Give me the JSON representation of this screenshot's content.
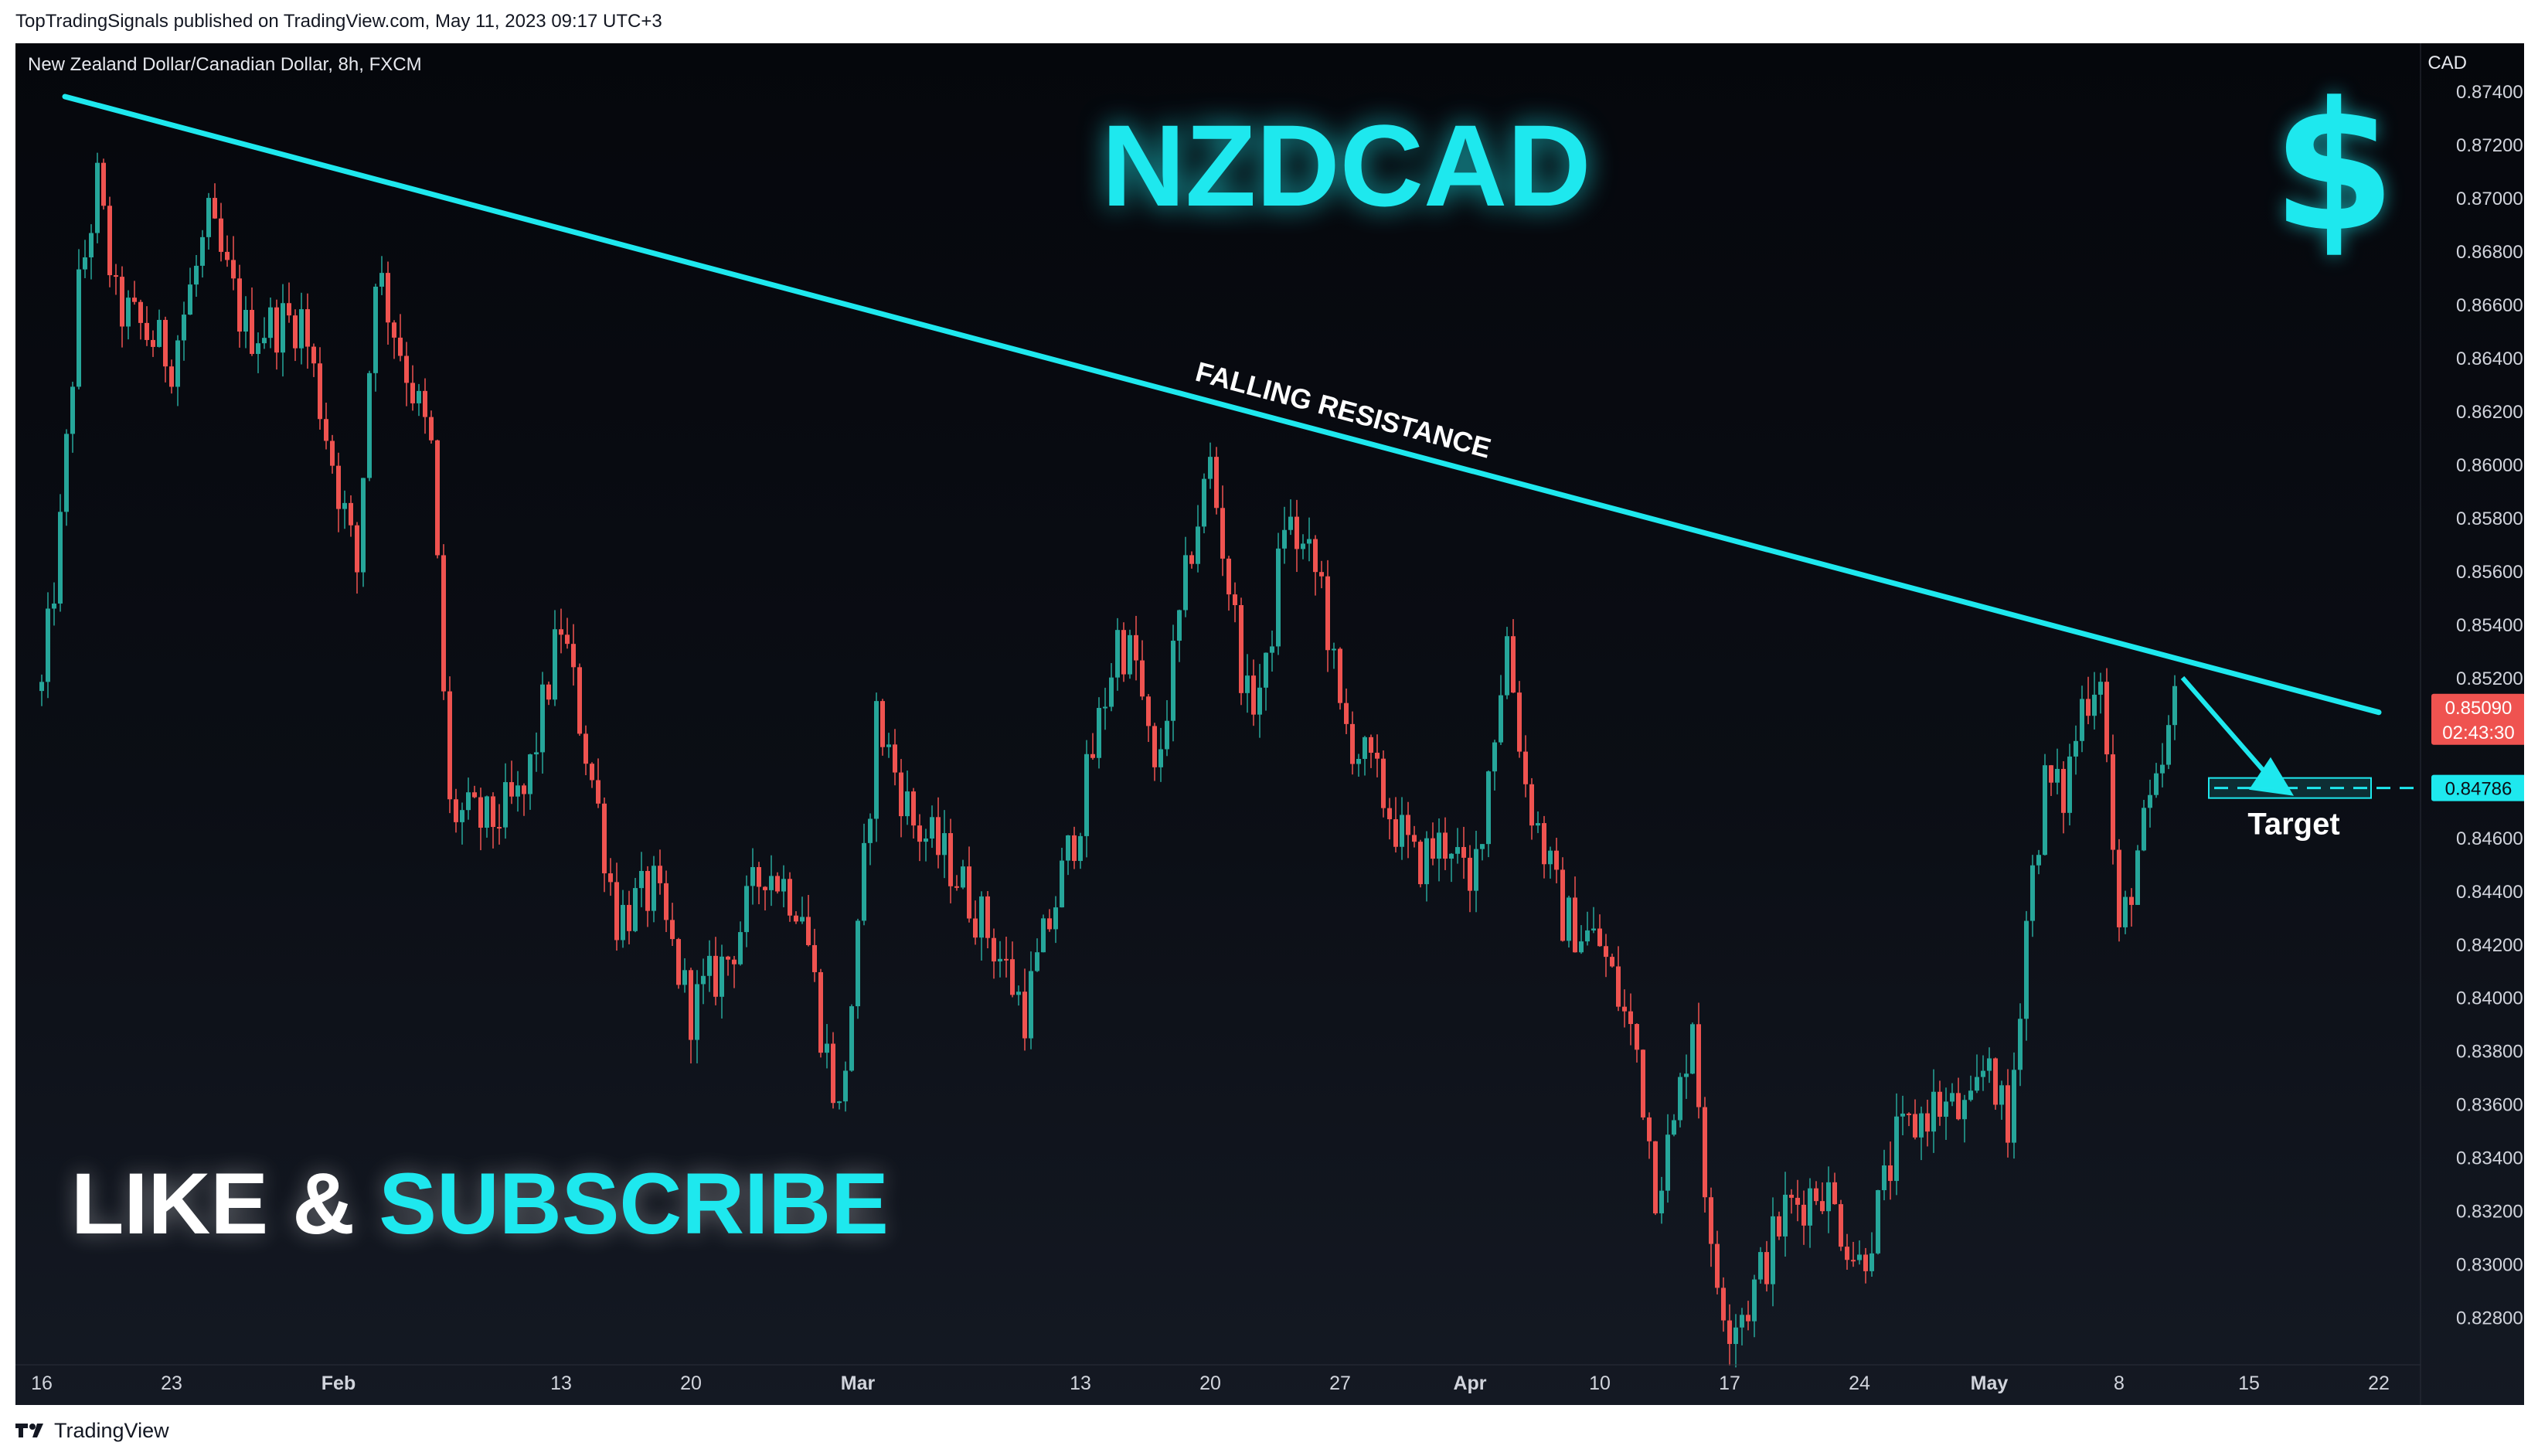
{
  "publisher_line": "TopTradingSignals published on TradingView.com, May 11, 2023 09:17 UTC+3",
  "symbol_line": "New Zealand Dollar/Canadian Dollar, 8h, FXCM",
  "footer_brand": "TradingView",
  "colors": {
    "up": "#26a69a",
    "down": "#ef5350",
    "accent": "#1ee8ee",
    "background": "#0b0e15"
  },
  "icons": {
    "dollar": "dollar-sign-icon",
    "logo": "tradingview-logo-icon"
  },
  "chart_data": {
    "type": "candlestick",
    "title": "NZDCAD",
    "currency_label": "CAD",
    "y_ticks": [
      "0.87400",
      "0.87200",
      "0.87000",
      "0.86800",
      "0.86600",
      "0.86400",
      "0.86200",
      "0.86000",
      "0.85800",
      "0.85600",
      "0.85400",
      "0.85200",
      "0.85000",
      "0.84800",
      "0.84600",
      "0.84400",
      "0.84200",
      "0.84000",
      "0.83800",
      "0.83600",
      "0.83400",
      "0.83200",
      "0.83000",
      "0.82800"
    ],
    "y_range": [
      0.8268,
      0.8758
    ],
    "x_ticks": [
      {
        "label": "16",
        "date": "2023-01-16",
        "bold": false
      },
      {
        "label": "23",
        "date": "2023-01-23",
        "bold": false
      },
      {
        "label": "Feb",
        "date": "2023-02-01",
        "bold": true
      },
      {
        "label": "13",
        "date": "2023-02-13",
        "bold": false
      },
      {
        "label": "20",
        "date": "2023-02-20",
        "bold": false
      },
      {
        "label": "Mar",
        "date": "2023-03-01",
        "bold": true
      },
      {
        "label": "13",
        "date": "2023-03-13",
        "bold": false
      },
      {
        "label": "20",
        "date": "2023-03-20",
        "bold": false
      },
      {
        "label": "27",
        "date": "2023-03-27",
        "bold": false
      },
      {
        "label": "Apr",
        "date": "2023-04-03",
        "bold": true
      },
      {
        "label": "10",
        "date": "2023-04-10",
        "bold": false
      },
      {
        "label": "17",
        "date": "2023-04-17",
        "bold": false
      },
      {
        "label": "24",
        "date": "2023-04-24",
        "bold": false
      },
      {
        "label": "May",
        "date": "2023-05-01",
        "bold": true
      },
      {
        "label": "8",
        "date": "2023-05-08",
        "bold": false
      },
      {
        "label": "15",
        "date": "2023-05-15",
        "bold": false
      },
      {
        "label": "22",
        "date": "2023-05-22",
        "bold": false
      }
    ],
    "price_path": [
      {
        "date": "2023-01-16",
        "close": 0.8515
      },
      {
        "date": "2023-01-17",
        "close": 0.8575
      },
      {
        "date": "2023-01-18",
        "close": 0.8665
      },
      {
        "date": "2023-01-19",
        "close": 0.8705
      },
      {
        "date": "2023-01-20",
        "close": 0.866
      },
      {
        "date": "2023-01-23",
        "close": 0.864
      },
      {
        "date": "2023-01-25",
        "close": 0.869
      },
      {
        "date": "2023-01-27",
        "close": 0.865
      },
      {
        "date": "2023-01-30",
        "close": 0.8655
      },
      {
        "date": "2023-02-02",
        "close": 0.856
      },
      {
        "date": "2023-02-03",
        "close": 0.8675
      },
      {
        "date": "2023-02-06",
        "close": 0.8605
      },
      {
        "date": "2023-02-07",
        "close": 0.847
      },
      {
        "date": "2023-02-09",
        "close": 0.8465
      },
      {
        "date": "2023-02-11",
        "close": 0.8475
      },
      {
        "date": "2023-02-13",
        "close": 0.854
      },
      {
        "date": "2023-02-15",
        "close": 0.847
      },
      {
        "date": "2023-02-16",
        "close": 0.843
      },
      {
        "date": "2023-02-18",
        "close": 0.844
      },
      {
        "date": "2023-02-20",
        "close": 0.8395
      },
      {
        "date": "2023-02-22",
        "close": 0.8415
      },
      {
        "date": "2023-02-24",
        "close": 0.845
      },
      {
        "date": "2023-02-26",
        "close": 0.8435
      },
      {
        "date": "2023-02-27",
        "close": 0.839
      },
      {
        "date": "2023-02-28",
        "close": 0.8355
      },
      {
        "date": "2023-03-01",
        "close": 0.842
      },
      {
        "date": "2023-03-02",
        "close": 0.8505
      },
      {
        "date": "2023-03-04",
        "close": 0.8465
      },
      {
        "date": "2023-03-06",
        "close": 0.845
      },
      {
        "date": "2023-03-08",
        "close": 0.8425
      },
      {
        "date": "2023-03-10",
        "close": 0.8395
      },
      {
        "date": "2023-03-12",
        "close": 0.8445
      },
      {
        "date": "2023-03-13",
        "close": 0.847
      },
      {
        "date": "2023-03-15",
        "close": 0.8535
      },
      {
        "date": "2023-03-16",
        "close": 0.8525
      },
      {
        "date": "2023-03-17",
        "close": 0.848
      },
      {
        "date": "2023-03-19",
        "close": 0.857
      },
      {
        "date": "2023-03-20",
        "close": 0.86
      },
      {
        "date": "2023-03-22",
        "close": 0.851
      },
      {
        "date": "2023-03-23",
        "close": 0.852
      },
      {
        "date": "2023-03-24",
        "close": 0.858
      },
      {
        "date": "2023-03-26",
        "close": 0.8555
      },
      {
        "date": "2023-03-27",
        "close": 0.8505
      },
      {
        "date": "2023-03-29",
        "close": 0.848
      },
      {
        "date": "2023-03-31",
        "close": 0.845
      },
      {
        "date": "2023-04-02",
        "close": 0.846
      },
      {
        "date": "2023-04-03",
        "close": 0.8435
      },
      {
        "date": "2023-04-05",
        "close": 0.8535
      },
      {
        "date": "2023-04-06",
        "close": 0.848
      },
      {
        "date": "2023-04-08",
        "close": 0.843
      },
      {
        "date": "2023-04-10",
        "close": 0.842
      },
      {
        "date": "2023-04-12",
        "close": 0.838
      },
      {
        "date": "2023-04-13",
        "close": 0.833
      },
      {
        "date": "2023-04-14",
        "close": 0.835
      },
      {
        "date": "2023-04-15",
        "close": 0.8395
      },
      {
        "date": "2023-04-16",
        "close": 0.83
      },
      {
        "date": "2023-04-17",
        "close": 0.828
      },
      {
        "date": "2023-04-18",
        "close": 0.8285
      },
      {
        "date": "2023-04-20",
        "close": 0.832
      },
      {
        "date": "2023-04-22",
        "close": 0.833
      },
      {
        "date": "2023-04-24",
        "close": 0.83
      },
      {
        "date": "2023-04-25",
        "close": 0.832
      },
      {
        "date": "2023-04-26",
        "close": 0.8345
      },
      {
        "date": "2023-04-28",
        "close": 0.836
      },
      {
        "date": "2023-04-30",
        "close": 0.8355
      },
      {
        "date": "2023-05-01",
        "close": 0.838
      },
      {
        "date": "2023-05-02",
        "close": 0.8345
      },
      {
        "date": "2023-05-03",
        "close": 0.843
      },
      {
        "date": "2023-05-04",
        "close": 0.848
      },
      {
        "date": "2023-05-05",
        "close": 0.8475
      },
      {
        "date": "2023-05-06",
        "close": 0.851
      },
      {
        "date": "2023-05-07",
        "close": 0.8525
      },
      {
        "date": "2023-05-08",
        "close": 0.842
      },
      {
        "date": "2023-05-09",
        "close": 0.8455
      },
      {
        "date": "2023-05-10",
        "close": 0.8475
      },
      {
        "date": "2023-05-11",
        "close": 0.8509
      }
    ],
    "annotations": {
      "resistance_label": "FALLING RESISTANCE",
      "resistance_line": [
        {
          "date": "2023-01-16",
          "price": 0.8738
        },
        {
          "date": "2023-05-22",
          "price": 0.8507
        }
      ],
      "arrow": {
        "from": {
          "date": "2023-05-11",
          "price": 0.852
        },
        "to": {
          "date": "2023-05-17",
          "price": 0.8478
        }
      },
      "target_label": "Target",
      "target_price": 0.84786,
      "target_price_label": "0.84786",
      "last_price_label": "0.85090",
      "last_price": 0.8509,
      "countdown_label": "02:43:30",
      "cta_like": "LIKE & ",
      "cta_subscribe": "SUBSCRIBE"
    }
  }
}
